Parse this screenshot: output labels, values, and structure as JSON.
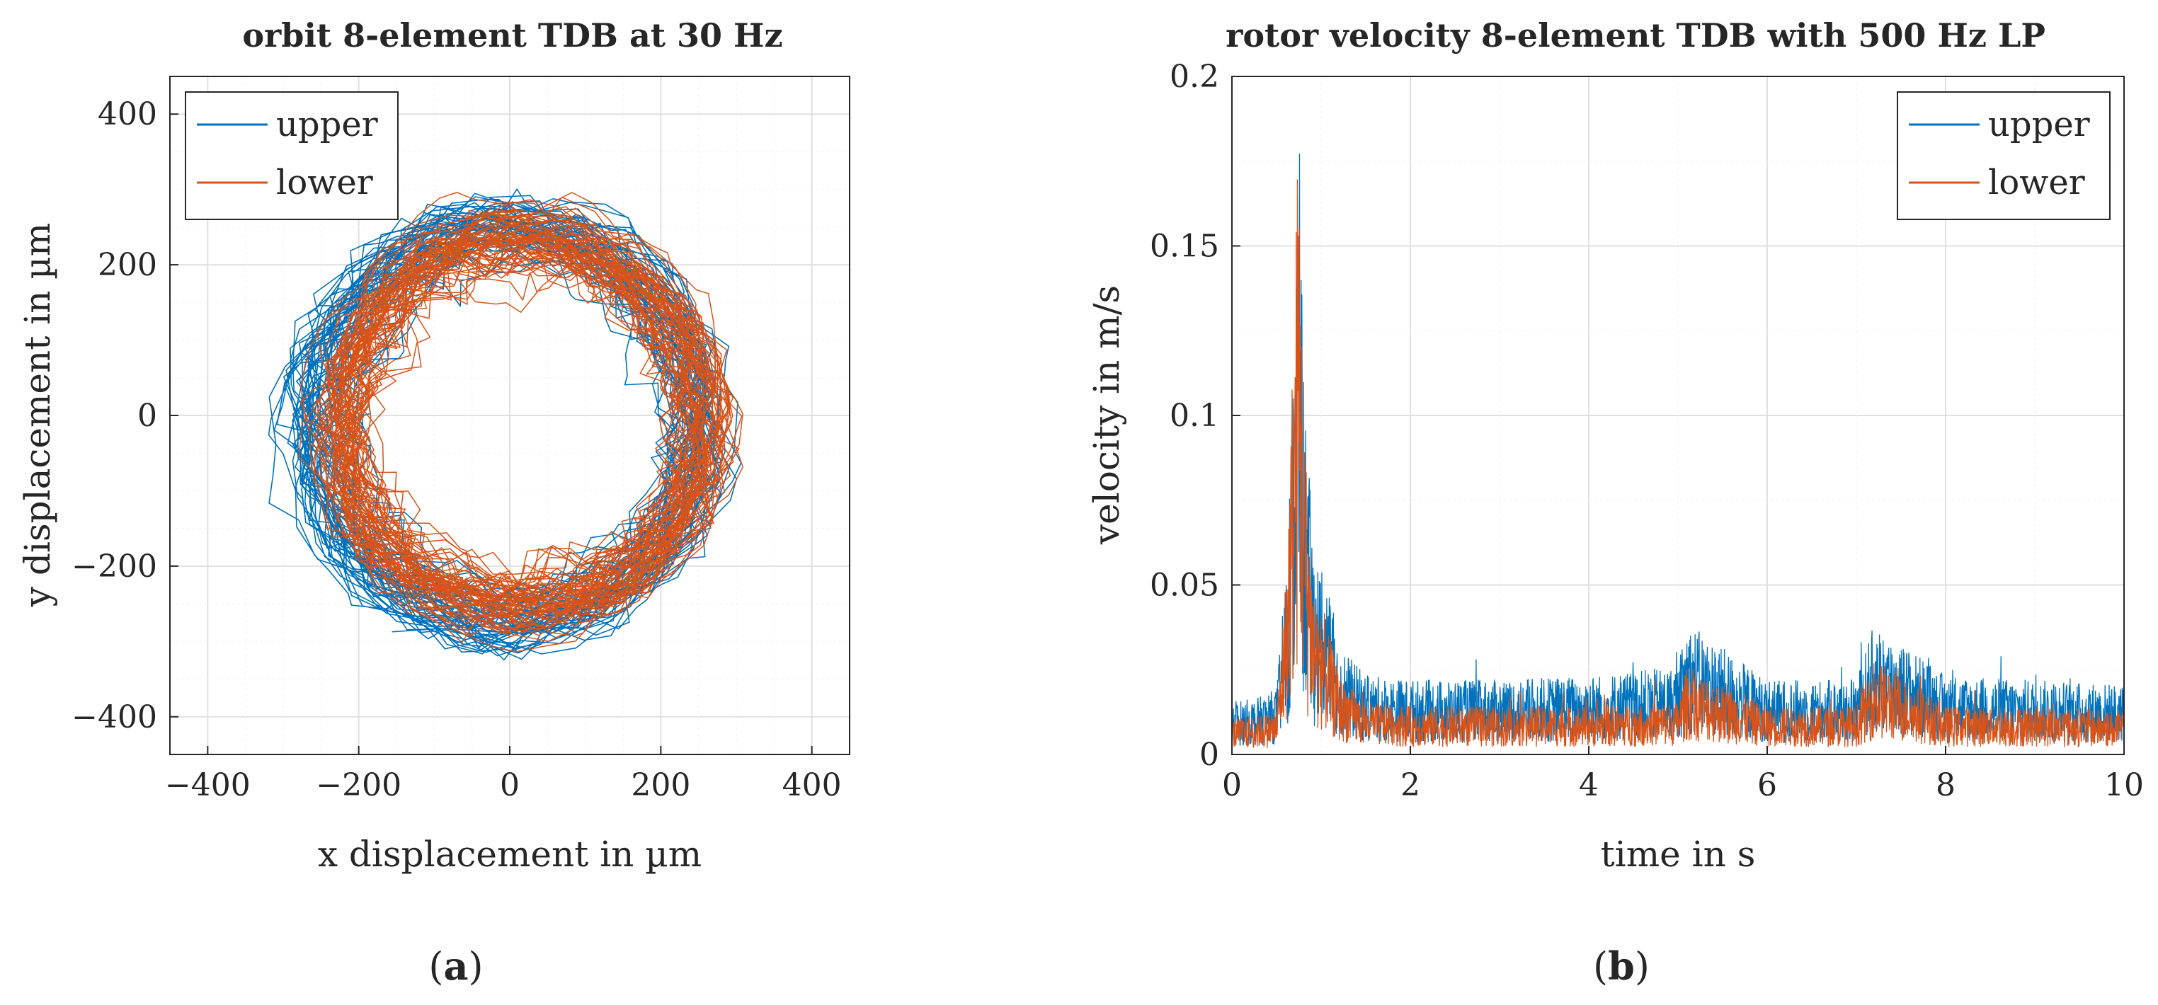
{
  "colors": {
    "upper": "#0072bd",
    "lower": "#d95319",
    "grid": "#e6e6e6",
    "axis": "#262626"
  },
  "chart_data": [
    {
      "type": "line",
      "caption": "(a)",
      "title": "orbit 8-element TDB at 30 Hz",
      "xlabel": "x displacement in µm",
      "ylabel": "y displacement in µm",
      "xlim": [
        -450,
        450
      ],
      "ylim": [
        -450,
        450
      ],
      "xticks": [
        -400,
        -200,
        0,
        200,
        400
      ],
      "yticks": [
        -400,
        -200,
        0,
        200,
        400
      ],
      "xtick_labels": [
        "−400",
        "−200",
        "0",
        "200",
        "400"
      ],
      "ytick_labels": [
        "−400",
        "−200",
        "0",
        "200",
        "400"
      ],
      "grid": true,
      "minor_grid": true,
      "legend_position": "top-left",
      "series": [
        {
          "name": "upper",
          "description_points": [
            [
              -360,
              0
            ],
            [
              -300,
              220
            ],
            [
              -150,
              320
            ],
            [
              0,
              355
            ],
            [
              150,
              340
            ],
            [
              300,
              230
            ],
            [
              345,
              0
            ],
            [
              300,
              -230
            ],
            [
              150,
              -330
            ],
            [
              0,
              -370
            ],
            [
              -150,
              -350
            ],
            [
              -300,
              -230
            ],
            [
              -360,
              0
            ]
          ]
        },
        {
          "name": "lower",
          "description_points": [
            [
              -330,
              0
            ],
            [
              -280,
              200
            ],
            [
              -120,
              320
            ],
            [
              0,
              345
            ],
            [
              150,
              330
            ],
            [
              290,
              210
            ],
            [
              340,
              0
            ],
            [
              290,
              -220
            ],
            [
              150,
              -330
            ],
            [
              0,
              -375
            ],
            [
              -150,
              -345
            ],
            [
              -290,
              -220
            ],
            [
              -330,
              0
            ]
          ]
        }
      ]
    },
    {
      "type": "line",
      "caption": "(b)",
      "title": "rotor velocity 8-element TDB with 500 Hz LP",
      "xlabel": "time in s",
      "ylabel": "velocity in m/s",
      "xlim": [
        0,
        10
      ],
      "ylim": [
        0,
        0.2
      ],
      "xticks": [
        0,
        2,
        4,
        6,
        8,
        10
      ],
      "yticks": [
        0,
        0.05,
        0.1,
        0.15,
        0.2
      ],
      "xtick_labels": [
        "0",
        "2",
        "4",
        "6",
        "8",
        "10"
      ],
      "ytick_labels": [
        "0",
        "0.05",
        "0.1",
        "0.15",
        "0.2"
      ],
      "grid": true,
      "legend_position": "top-right",
      "series": [
        {
          "name": "upper",
          "x": [
            0,
            0.3,
            0.5,
            0.6,
            0.7,
            0.75,
            0.8,
            0.9,
            1.0,
            1.2,
            1.5,
            2,
            3,
            4,
            5,
            5.1,
            6,
            7,
            7.2,
            8,
            9,
            10
          ],
          "y": [
            0.012,
            0.013,
            0.015,
            0.04,
            0.11,
            0.165,
            0.1,
            0.058,
            0.045,
            0.025,
            0.018,
            0.017,
            0.017,
            0.018,
            0.02,
            0.03,
            0.017,
            0.017,
            0.03,
            0.018,
            0.017,
            0.016
          ]
        },
        {
          "name": "lower",
          "x": [
            0,
            0.3,
            0.5,
            0.6,
            0.7,
            0.75,
            0.8,
            0.9,
            1.0,
            1.2,
            1.5,
            2,
            3,
            4,
            5,
            5.1,
            6,
            7,
            7.2,
            8,
            9,
            10
          ],
          "y": [
            0.008,
            0.009,
            0.01,
            0.04,
            0.12,
            0.17,
            0.09,
            0.05,
            0.035,
            0.018,
            0.012,
            0.011,
            0.011,
            0.011,
            0.012,
            0.02,
            0.011,
            0.011,
            0.022,
            0.011,
            0.011,
            0.01
          ]
        }
      ]
    }
  ]
}
